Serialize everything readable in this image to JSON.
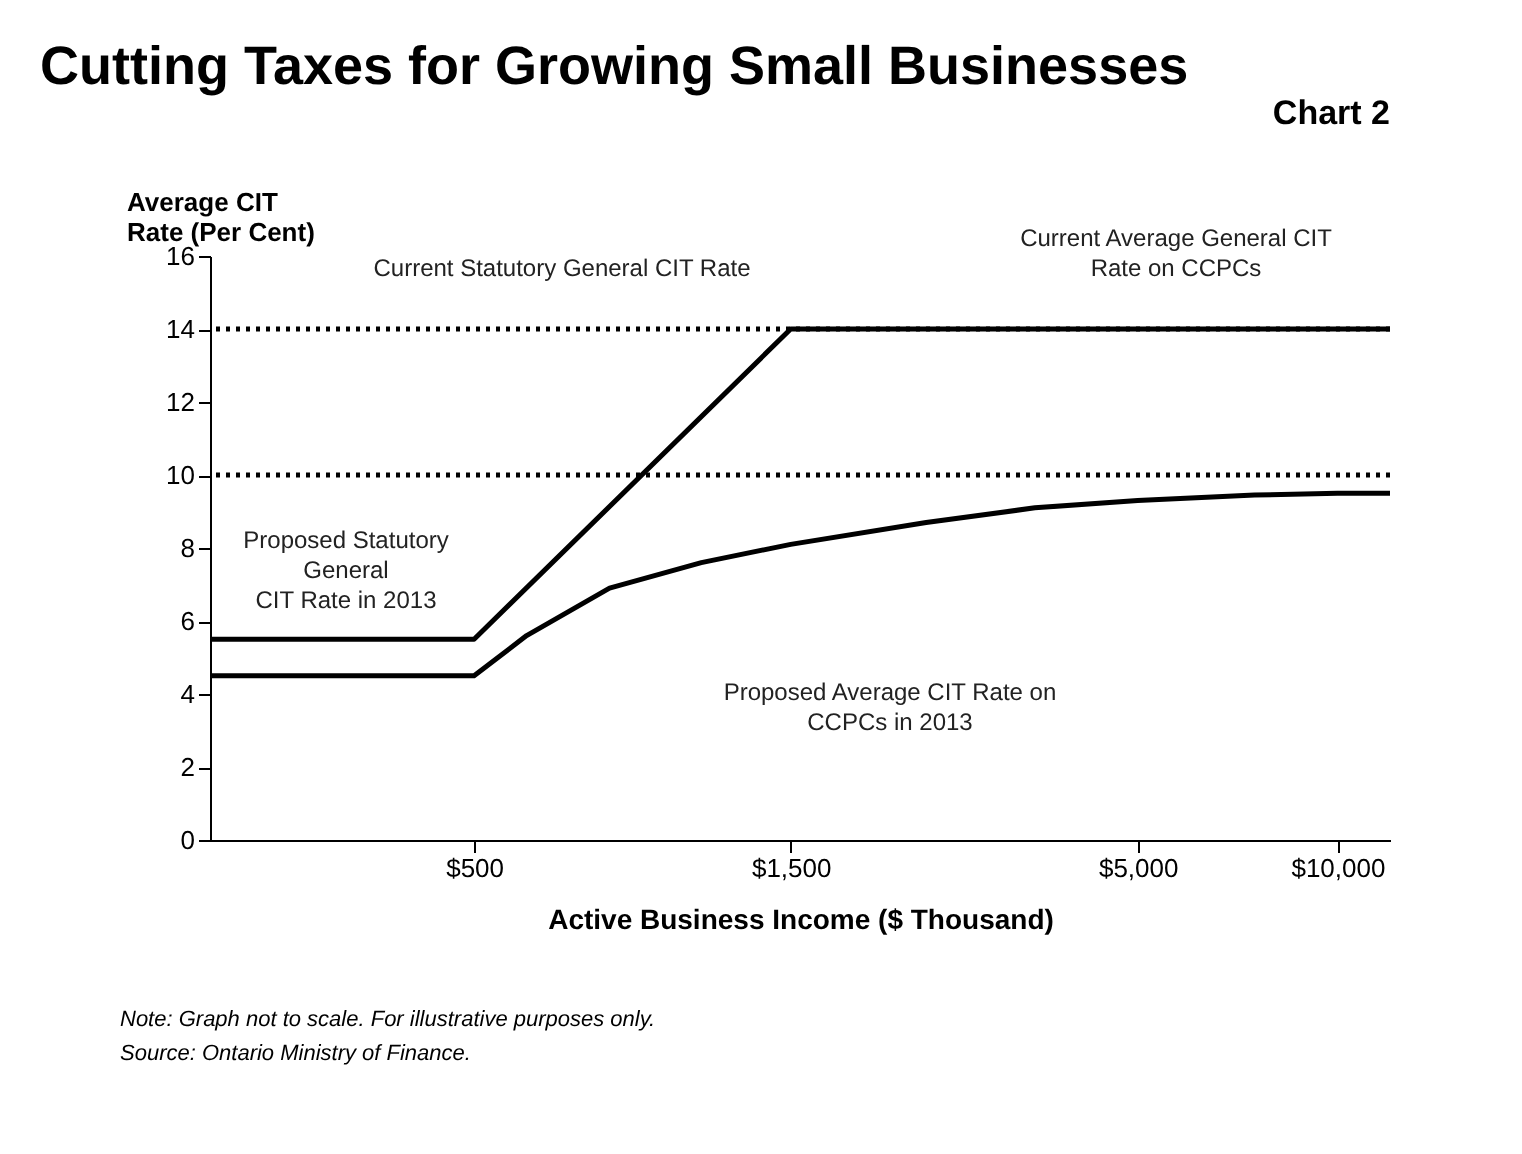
{
  "chart_data": {
    "type": "line",
    "title": "Cutting Taxes for Growing Small Businesses",
    "subtitle": "Chart 2",
    "ylabel": "Average CIT\nRate (Per Cent)",
    "xlabel": "Active Business Income ($ Thousand)",
    "log": "x",
    "xlim": [
      200,
      12000
    ],
    "xticks": [
      {
        "value": 500,
        "label": "$500"
      },
      {
        "value": 1500,
        "label": "$1,500"
      },
      {
        "value": 5000,
        "label": "$5,000"
      },
      {
        "value": 10000,
        "label": "$10,000"
      }
    ],
    "ylim": [
      0,
      16
    ],
    "yticks": [
      0,
      2,
      4,
      6,
      8,
      10,
      12,
      14,
      16
    ],
    "grid": false,
    "marker": "none",
    "line_style": "solid",
    "series": [
      {
        "color": "#000000",
        "x": [
          200,
          500,
          1500,
          12000
        ],
        "values": [
          5.5,
          5.5,
          14,
          14
        ]
      },
      {
        "color": "#000000",
        "x": [
          200,
          500,
          600,
          800,
          1100,
          1500,
          2400,
          3500,
          5000,
          7500,
          10000,
          12000
        ],
        "values": [
          4.5,
          4.5,
          5.6,
          6.9,
          7.6,
          8.1,
          8.7,
          9.1,
          9.3,
          9.45,
          9.5,
          9.5
        ]
      }
    ],
    "ref_lines": [
      {
        "axis": "y",
        "value": 14,
        "color": "#000000",
        "line_style": "dotted"
      },
      {
        "axis": "y",
        "value": 10,
        "color": "#000000",
        "line_style": "dotted"
      }
    ],
    "annotations": [
      "Current Statutory General CIT Rate",
      "Current Average General CIT\nRate on CCPCs",
      "Proposed Statutory\nGeneral\nCIT Rate in 2013",
      "Proposed Average CIT Rate on\nCCPCs in 2013",
      "Note: Graph not to scale. For illustrative purposes only.",
      "Source: Ontario Ministry of Finance."
    ]
  }
}
